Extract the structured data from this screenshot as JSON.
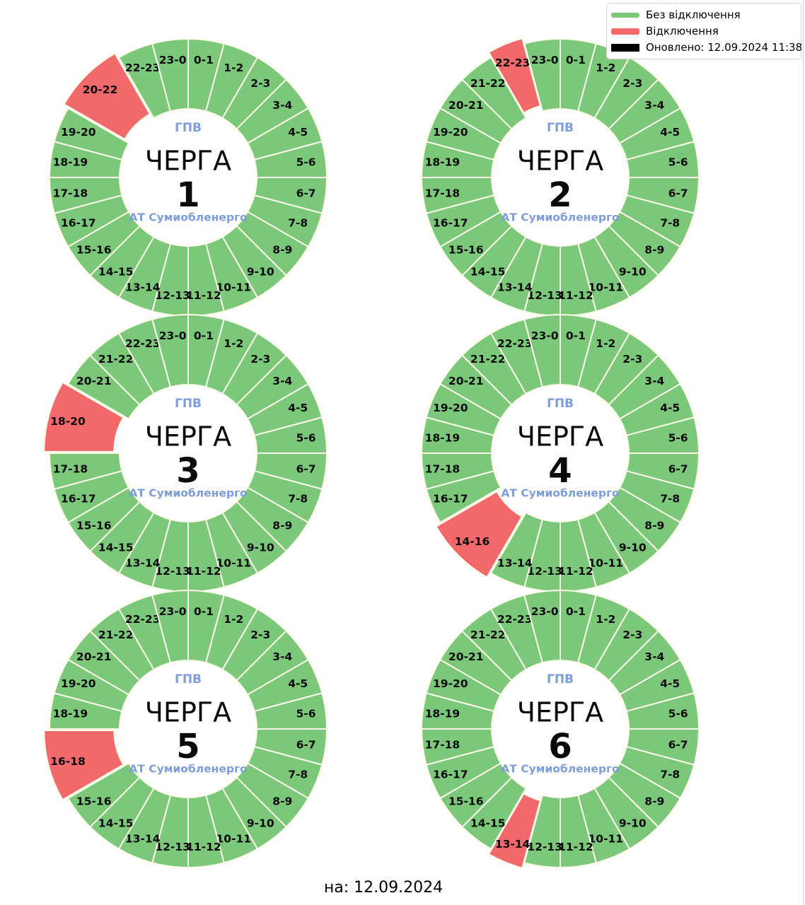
{
  "page": {
    "footer": "на: 12.09.2024"
  },
  "legend": {
    "items": [
      {
        "name": "no-outage",
        "label": "Без відключення",
        "color": "#7bc87a"
      },
      {
        "name": "outage",
        "label": "Відключення",
        "color": "#f2686b"
      },
      {
        "name": "updated",
        "label": "Оновлено: 12.09.2024 11:38",
        "color": "#000000"
      }
    ]
  },
  "style": {
    "ok_color": "#7bc87a",
    "outage_color": "#f2686b",
    "wedge_border_color": "#fdfbe8",
    "accent_text_color": "#7d9ed8",
    "label_color": "#0a0a0a"
  },
  "chart_data": [
    {
      "type": "pie",
      "title": "ЧЕРГА 1",
      "center": {
        "top": "ГПВ",
        "title": "ЧЕРГА",
        "number": "1",
        "subtitle": "АТ Сумиобленерго"
      },
      "legend_position": "figure-top-right",
      "segments": [
        {
          "label": "0-1",
          "start": 0,
          "span": 1,
          "status": "ok"
        },
        {
          "label": "1-2",
          "start": 1,
          "span": 1,
          "status": "ok"
        },
        {
          "label": "2-3",
          "start": 2,
          "span": 1,
          "status": "ok"
        },
        {
          "label": "3-4",
          "start": 3,
          "span": 1,
          "status": "ok"
        },
        {
          "label": "4-5",
          "start": 4,
          "span": 1,
          "status": "ok"
        },
        {
          "label": "5-6",
          "start": 5,
          "span": 1,
          "status": "ok"
        },
        {
          "label": "6-7",
          "start": 6,
          "span": 1,
          "status": "ok"
        },
        {
          "label": "7-8",
          "start": 7,
          "span": 1,
          "status": "ok"
        },
        {
          "label": "8-9",
          "start": 8,
          "span": 1,
          "status": "ok"
        },
        {
          "label": "9-10",
          "start": 9,
          "span": 1,
          "status": "ok"
        },
        {
          "label": "10-11",
          "start": 10,
          "span": 1,
          "status": "ok"
        },
        {
          "label": "11-12",
          "start": 11,
          "span": 1,
          "status": "ok"
        },
        {
          "label": "12-13",
          "start": 12,
          "span": 1,
          "status": "ok"
        },
        {
          "label": "13-14",
          "start": 13,
          "span": 1,
          "status": "ok"
        },
        {
          "label": "14-15",
          "start": 14,
          "span": 1,
          "status": "ok"
        },
        {
          "label": "15-16",
          "start": 15,
          "span": 1,
          "status": "ok"
        },
        {
          "label": "16-17",
          "start": 16,
          "span": 1,
          "status": "ok"
        },
        {
          "label": "17-18",
          "start": 17,
          "span": 1,
          "status": "ok"
        },
        {
          "label": "18-19",
          "start": 18,
          "span": 1,
          "status": "ok"
        },
        {
          "label": "19-20",
          "start": 19,
          "span": 1,
          "status": "ok"
        },
        {
          "label": "20-22",
          "start": 20,
          "span": 2,
          "status": "outage"
        },
        {
          "label": "22-23",
          "start": 22,
          "span": 1,
          "status": "ok"
        },
        {
          "label": "23-0",
          "start": 23,
          "span": 1,
          "status": "ok"
        }
      ]
    },
    {
      "type": "pie",
      "title": "ЧЕРГА 2",
      "center": {
        "top": "ГПВ",
        "title": "ЧЕРГА",
        "number": "2",
        "subtitle": "АТ Сумиобленерго"
      },
      "segments": [
        {
          "label": "0-1",
          "start": 0,
          "span": 1,
          "status": "ok"
        },
        {
          "label": "1-2",
          "start": 1,
          "span": 1,
          "status": "ok"
        },
        {
          "label": "2-3",
          "start": 2,
          "span": 1,
          "status": "ok"
        },
        {
          "label": "3-4",
          "start": 3,
          "span": 1,
          "status": "ok"
        },
        {
          "label": "4-5",
          "start": 4,
          "span": 1,
          "status": "ok"
        },
        {
          "label": "5-6",
          "start": 5,
          "span": 1,
          "status": "ok"
        },
        {
          "label": "6-7",
          "start": 6,
          "span": 1,
          "status": "ok"
        },
        {
          "label": "7-8",
          "start": 7,
          "span": 1,
          "status": "ok"
        },
        {
          "label": "8-9",
          "start": 8,
          "span": 1,
          "status": "ok"
        },
        {
          "label": "9-10",
          "start": 9,
          "span": 1,
          "status": "ok"
        },
        {
          "label": "10-11",
          "start": 10,
          "span": 1,
          "status": "ok"
        },
        {
          "label": "11-12",
          "start": 11,
          "span": 1,
          "status": "ok"
        },
        {
          "label": "12-13",
          "start": 12,
          "span": 1,
          "status": "ok"
        },
        {
          "label": "13-14",
          "start": 13,
          "span": 1,
          "status": "ok"
        },
        {
          "label": "14-15",
          "start": 14,
          "span": 1,
          "status": "ok"
        },
        {
          "label": "15-16",
          "start": 15,
          "span": 1,
          "status": "ok"
        },
        {
          "label": "16-17",
          "start": 16,
          "span": 1,
          "status": "ok"
        },
        {
          "label": "17-18",
          "start": 17,
          "span": 1,
          "status": "ok"
        },
        {
          "label": "18-19",
          "start": 18,
          "span": 1,
          "status": "ok"
        },
        {
          "label": "19-20",
          "start": 19,
          "span": 1,
          "status": "ok"
        },
        {
          "label": "20-21",
          "start": 20,
          "span": 1,
          "status": "ok"
        },
        {
          "label": "21-22",
          "start": 21,
          "span": 1,
          "status": "ok"
        },
        {
          "label": "22-23",
          "start": 22,
          "span": 1,
          "status": "outage"
        },
        {
          "label": "23-0",
          "start": 23,
          "span": 1,
          "status": "ok"
        }
      ]
    },
    {
      "type": "pie",
      "title": "ЧЕРГА 3",
      "center": {
        "top": "ГПВ",
        "title": "ЧЕРГА",
        "number": "3",
        "subtitle": "АТ Сумиобленерго"
      },
      "segments": [
        {
          "label": "0-1",
          "start": 0,
          "span": 1,
          "status": "ok"
        },
        {
          "label": "1-2",
          "start": 1,
          "span": 1,
          "status": "ok"
        },
        {
          "label": "2-3",
          "start": 2,
          "span": 1,
          "status": "ok"
        },
        {
          "label": "3-4",
          "start": 3,
          "span": 1,
          "status": "ok"
        },
        {
          "label": "4-5",
          "start": 4,
          "span": 1,
          "status": "ok"
        },
        {
          "label": "5-6",
          "start": 5,
          "span": 1,
          "status": "ok"
        },
        {
          "label": "6-7",
          "start": 6,
          "span": 1,
          "status": "ok"
        },
        {
          "label": "7-8",
          "start": 7,
          "span": 1,
          "status": "ok"
        },
        {
          "label": "8-9",
          "start": 8,
          "span": 1,
          "status": "ok"
        },
        {
          "label": "9-10",
          "start": 9,
          "span": 1,
          "status": "ok"
        },
        {
          "label": "10-11",
          "start": 10,
          "span": 1,
          "status": "ok"
        },
        {
          "label": "11-12",
          "start": 11,
          "span": 1,
          "status": "ok"
        },
        {
          "label": "12-13",
          "start": 12,
          "span": 1,
          "status": "ok"
        },
        {
          "label": "13-14",
          "start": 13,
          "span": 1,
          "status": "ok"
        },
        {
          "label": "14-15",
          "start": 14,
          "span": 1,
          "status": "ok"
        },
        {
          "label": "15-16",
          "start": 15,
          "span": 1,
          "status": "ok"
        },
        {
          "label": "16-17",
          "start": 16,
          "span": 1,
          "status": "ok"
        },
        {
          "label": "17-18",
          "start": 17,
          "span": 1,
          "status": "ok"
        },
        {
          "label": "18-20",
          "start": 18,
          "span": 2,
          "status": "outage"
        },
        {
          "label": "20-21",
          "start": 20,
          "span": 1,
          "status": "ok"
        },
        {
          "label": "21-22",
          "start": 21,
          "span": 1,
          "status": "ok"
        },
        {
          "label": "22-23",
          "start": 22,
          "span": 1,
          "status": "ok"
        },
        {
          "label": "23-0",
          "start": 23,
          "span": 1,
          "status": "ok"
        }
      ]
    },
    {
      "type": "pie",
      "title": "ЧЕРГА 4",
      "center": {
        "top": "ГПВ",
        "title": "ЧЕРГА",
        "number": "4",
        "subtitle": "АТ Сумиобленерго"
      },
      "segments": [
        {
          "label": "0-1",
          "start": 0,
          "span": 1,
          "status": "ok"
        },
        {
          "label": "1-2",
          "start": 1,
          "span": 1,
          "status": "ok"
        },
        {
          "label": "2-3",
          "start": 2,
          "span": 1,
          "status": "ok"
        },
        {
          "label": "3-4",
          "start": 3,
          "span": 1,
          "status": "ok"
        },
        {
          "label": "4-5",
          "start": 4,
          "span": 1,
          "status": "ok"
        },
        {
          "label": "5-6",
          "start": 5,
          "span": 1,
          "status": "ok"
        },
        {
          "label": "6-7",
          "start": 6,
          "span": 1,
          "status": "ok"
        },
        {
          "label": "7-8",
          "start": 7,
          "span": 1,
          "status": "ok"
        },
        {
          "label": "8-9",
          "start": 8,
          "span": 1,
          "status": "ok"
        },
        {
          "label": "9-10",
          "start": 9,
          "span": 1,
          "status": "ok"
        },
        {
          "label": "10-11",
          "start": 10,
          "span": 1,
          "status": "ok"
        },
        {
          "label": "11-12",
          "start": 11,
          "span": 1,
          "status": "ok"
        },
        {
          "label": "12-13",
          "start": 12,
          "span": 1,
          "status": "ok"
        },
        {
          "label": "13-14",
          "start": 13,
          "span": 1,
          "status": "ok"
        },
        {
          "label": "14-16",
          "start": 14,
          "span": 2,
          "status": "outage"
        },
        {
          "label": "16-17",
          "start": 16,
          "span": 1,
          "status": "ok"
        },
        {
          "label": "17-18",
          "start": 17,
          "span": 1,
          "status": "ok"
        },
        {
          "label": "18-19",
          "start": 18,
          "span": 1,
          "status": "ok"
        },
        {
          "label": "19-20",
          "start": 19,
          "span": 1,
          "status": "ok"
        },
        {
          "label": "20-21",
          "start": 20,
          "span": 1,
          "status": "ok"
        },
        {
          "label": "21-22",
          "start": 21,
          "span": 1,
          "status": "ok"
        },
        {
          "label": "22-23",
          "start": 22,
          "span": 1,
          "status": "ok"
        },
        {
          "label": "23-0",
          "start": 23,
          "span": 1,
          "status": "ok"
        }
      ]
    },
    {
      "type": "pie",
      "title": "ЧЕРГА 5",
      "center": {
        "top": "ГПВ",
        "title": "ЧЕРГА",
        "number": "5",
        "subtitle": "АТ Сумиобленерго"
      },
      "segments": [
        {
          "label": "0-1",
          "start": 0,
          "span": 1,
          "status": "ok"
        },
        {
          "label": "1-2",
          "start": 1,
          "span": 1,
          "status": "ok"
        },
        {
          "label": "2-3",
          "start": 2,
          "span": 1,
          "status": "ok"
        },
        {
          "label": "3-4",
          "start": 3,
          "span": 1,
          "status": "ok"
        },
        {
          "label": "4-5",
          "start": 4,
          "span": 1,
          "status": "ok"
        },
        {
          "label": "5-6",
          "start": 5,
          "span": 1,
          "status": "ok"
        },
        {
          "label": "6-7",
          "start": 6,
          "span": 1,
          "status": "ok"
        },
        {
          "label": "7-8",
          "start": 7,
          "span": 1,
          "status": "ok"
        },
        {
          "label": "8-9",
          "start": 8,
          "span": 1,
          "status": "ok"
        },
        {
          "label": "9-10",
          "start": 9,
          "span": 1,
          "status": "ok"
        },
        {
          "label": "10-11",
          "start": 10,
          "span": 1,
          "status": "ok"
        },
        {
          "label": "11-12",
          "start": 11,
          "span": 1,
          "status": "ok"
        },
        {
          "label": "12-13",
          "start": 12,
          "span": 1,
          "status": "ok"
        },
        {
          "label": "13-14",
          "start": 13,
          "span": 1,
          "status": "ok"
        },
        {
          "label": "14-15",
          "start": 14,
          "span": 1,
          "status": "ok"
        },
        {
          "label": "15-16",
          "start": 15,
          "span": 1,
          "status": "ok"
        },
        {
          "label": "16-18",
          "start": 16,
          "span": 2,
          "status": "outage"
        },
        {
          "label": "18-19",
          "start": 18,
          "span": 1,
          "status": "ok"
        },
        {
          "label": "19-20",
          "start": 19,
          "span": 1,
          "status": "ok"
        },
        {
          "label": "20-21",
          "start": 20,
          "span": 1,
          "status": "ok"
        },
        {
          "label": "21-22",
          "start": 21,
          "span": 1,
          "status": "ok"
        },
        {
          "label": "22-23",
          "start": 22,
          "span": 1,
          "status": "ok"
        },
        {
          "label": "23-0",
          "start": 23,
          "span": 1,
          "status": "ok"
        }
      ]
    },
    {
      "type": "pie",
      "title": "ЧЕРГА 6",
      "center": {
        "top": "ГПВ",
        "title": "ЧЕРГА",
        "number": "6",
        "subtitle": "АТ Сумиобленерго"
      },
      "segments": [
        {
          "label": "0-1",
          "start": 0,
          "span": 1,
          "status": "ok"
        },
        {
          "label": "1-2",
          "start": 1,
          "span": 1,
          "status": "ok"
        },
        {
          "label": "2-3",
          "start": 2,
          "span": 1,
          "status": "ok"
        },
        {
          "label": "3-4",
          "start": 3,
          "span": 1,
          "status": "ok"
        },
        {
          "label": "4-5",
          "start": 4,
          "span": 1,
          "status": "ok"
        },
        {
          "label": "5-6",
          "start": 5,
          "span": 1,
          "status": "ok"
        },
        {
          "label": "6-7",
          "start": 6,
          "span": 1,
          "status": "ok"
        },
        {
          "label": "7-8",
          "start": 7,
          "span": 1,
          "status": "ok"
        },
        {
          "label": "8-9",
          "start": 8,
          "span": 1,
          "status": "ok"
        },
        {
          "label": "9-10",
          "start": 9,
          "span": 1,
          "status": "ok"
        },
        {
          "label": "10-11",
          "start": 10,
          "span": 1,
          "status": "ok"
        },
        {
          "label": "11-12",
          "start": 11,
          "span": 1,
          "status": "ok"
        },
        {
          "label": "12-13",
          "start": 12,
          "span": 1,
          "status": "ok"
        },
        {
          "label": "13-14",
          "start": 13,
          "span": 1,
          "status": "outage"
        },
        {
          "label": "14-15",
          "start": 14,
          "span": 1,
          "status": "ok"
        },
        {
          "label": "15-16",
          "start": 15,
          "span": 1,
          "status": "ok"
        },
        {
          "label": "16-17",
          "start": 16,
          "span": 1,
          "status": "ok"
        },
        {
          "label": "17-18",
          "start": 17,
          "span": 1,
          "status": "ok"
        },
        {
          "label": "18-19",
          "start": 18,
          "span": 1,
          "status": "ok"
        },
        {
          "label": "19-20",
          "start": 19,
          "span": 1,
          "status": "ok"
        },
        {
          "label": "20-21",
          "start": 20,
          "span": 1,
          "status": "ok"
        },
        {
          "label": "21-22",
          "start": 21,
          "span": 1,
          "status": "ok"
        },
        {
          "label": "22-23",
          "start": 22,
          "span": 1,
          "status": "ok"
        },
        {
          "label": "23-0",
          "start": 23,
          "span": 1,
          "status": "ok"
        }
      ]
    }
  ]
}
